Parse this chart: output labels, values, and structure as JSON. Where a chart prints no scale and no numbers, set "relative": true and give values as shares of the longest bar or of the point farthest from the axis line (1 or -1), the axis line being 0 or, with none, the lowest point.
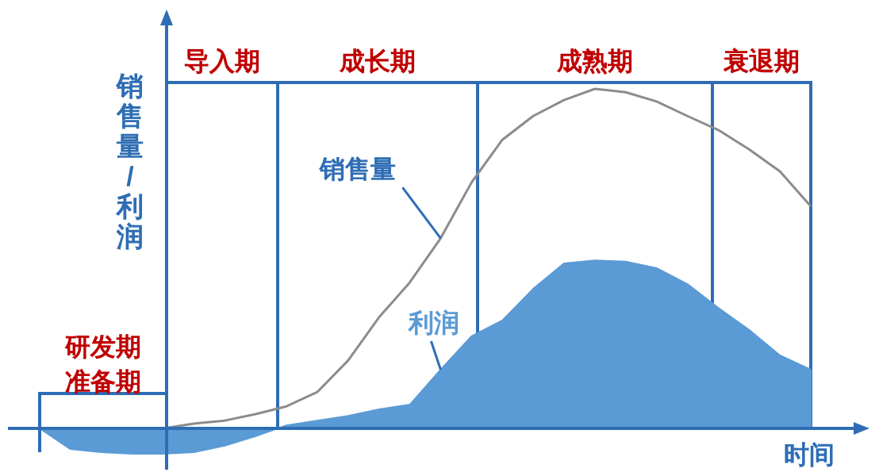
{
  "chart_data": {
    "type": "line",
    "relative": true,
    "ylabel": "销售量/利润",
    "xlabel": "时间",
    "categories": [
      null,
      null,
      null,
      null,
      null,
      null,
      null,
      null,
      null,
      null,
      null,
      null,
      null,
      null,
      null,
      null,
      null,
      null,
      null,
      null,
      null,
      null,
      null,
      null,
      null,
      null
    ],
    "series": [
      {
        "name": "销售量",
        "color": "#8c8c8c",
        "values": [
          null,
          null,
          null,
          null,
          0,
          0.014,
          0.023,
          0.042,
          0.065,
          0.107,
          0.2,
          0.327,
          0.43,
          0.56,
          0.724,
          0.85,
          0.92,
          0.967,
          1,
          0.99,
          0.963,
          0.92,
          0.879,
          0.822,
          0.757,
          0.654
        ]
      },
      {
        "name": "利润",
        "type": "area",
        "color": "#5b9bd5",
        "values": [
          0,
          -0.061,
          -0.07,
          -0.075,
          -0.075,
          -0.07,
          -0.051,
          -0.023,
          0.009,
          0.023,
          0.037,
          0.056,
          0.07,
          0.173,
          0.271,
          0.318,
          0.411,
          0.486,
          0.495,
          0.491,
          0.472,
          0.425,
          0.355,
          0.29,
          0.215,
          0.173
        ]
      }
    ],
    "ref_lines": [
      {
        "axis": "y",
        "value": 0,
        "color": "#2e6db4"
      }
    ],
    "annotations": [
      "研发期",
      "准备期",
      "导入期",
      "成长期",
      "成熟期",
      "衰退期"
    ]
  }
}
